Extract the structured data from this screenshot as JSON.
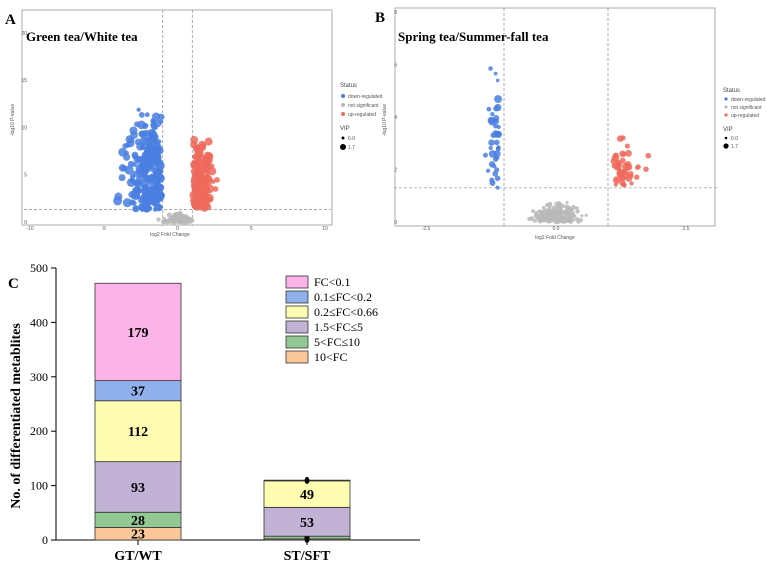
{
  "panels": {
    "A": {
      "letter": "A",
      "title": "Green tea/White tea"
    },
    "B": {
      "letter": "B",
      "title": "Spring tea/Summer-fall tea"
    },
    "C": {
      "letter": "C"
    }
  },
  "colors": {
    "down": "#4a7fe0",
    "notsig": "#b9b9b9",
    "up": "#ef6a5c",
    "pink": "#fbb3e8",
    "blue": "#8fb0ea",
    "yellow": "#fdfcb0",
    "purple": "#c2b2d6",
    "green": "#93c793",
    "orange": "#f9c79a"
  },
  "volcano_legend": {
    "status_title": "Status",
    "items": [
      "down-regulated",
      "not significant",
      "up-regulated"
    ],
    "vip_title": "VIP",
    "vip_values": [
      "0.0",
      "1.7"
    ]
  },
  "volcano_axes": {
    "xlabel": "log2 Fold Change",
    "ylabel": "-log10 P-value"
  },
  "chart_data": [
    {
      "type": "scatter",
      "panel": "A",
      "title": "Green tea/White tea",
      "xlabel": "log2 Fold Change",
      "ylabel": "-log10 P-value",
      "xlim": [
        -10,
        10
      ],
      "ylim": [
        0,
        22
      ],
      "xticks": [
        "-10",
        "-5",
        "0",
        "5",
        "10"
      ],
      "yticks": [
        "0",
        "5",
        "10",
        "15",
        "20"
      ],
      "fc_thresholds": [
        -1,
        1
      ],
      "p_threshold": 1.3,
      "series": [
        "down-regulated",
        "not significant",
        "up-regulated"
      ]
    },
    {
      "type": "scatter",
      "panel": "B",
      "title": "Spring tea/Summer-fall tea",
      "xlabel": "log2 Fold Change",
      "ylabel": "-log10 P-value",
      "xlim": [
        -3,
        3
      ],
      "ylim": [
        0,
        8
      ],
      "xticks": [
        "-2.5",
        "0.0",
        "2.5"
      ],
      "yticks": [
        "0",
        "2",
        "4",
        "6",
        "8"
      ],
      "fc_thresholds": [
        -1,
        1
      ],
      "p_threshold": 1.3,
      "series": [
        "down-regulated",
        "not significant",
        "up-regulated"
      ]
    },
    {
      "type": "bar",
      "stacked": true,
      "panel": "C",
      "categories": [
        "GT/WT",
        "ST/SFT"
      ],
      "ylabel": "No. of differentiated metablites",
      "ylim": [
        0,
        500
      ],
      "yticks": [
        0,
        100,
        200,
        300,
        400,
        500
      ],
      "legend_position": "top-right",
      "series": [
        {
          "name": "10<FC",
          "color_key": "orange",
          "values": [
            23,
            2
          ]
        },
        {
          "name": "5<FC≤10",
          "color_key": "green",
          "values": [
            28,
            5
          ]
        },
        {
          "name": "1.5<FC≤5",
          "color_key": "purple",
          "values": [
            93,
            53
          ]
        },
        {
          "name": "0.2≤FC<0.66",
          "color_key": "yellow",
          "values": [
            112,
            49
          ]
        },
        {
          "name": "0.1≤FC<0.2",
          "color_key": "blue",
          "values": [
            37,
            0
          ]
        },
        {
          "name": "FC<0.1",
          "color_key": "pink",
          "values": [
            179,
            1
          ]
        }
      ]
    }
  ]
}
